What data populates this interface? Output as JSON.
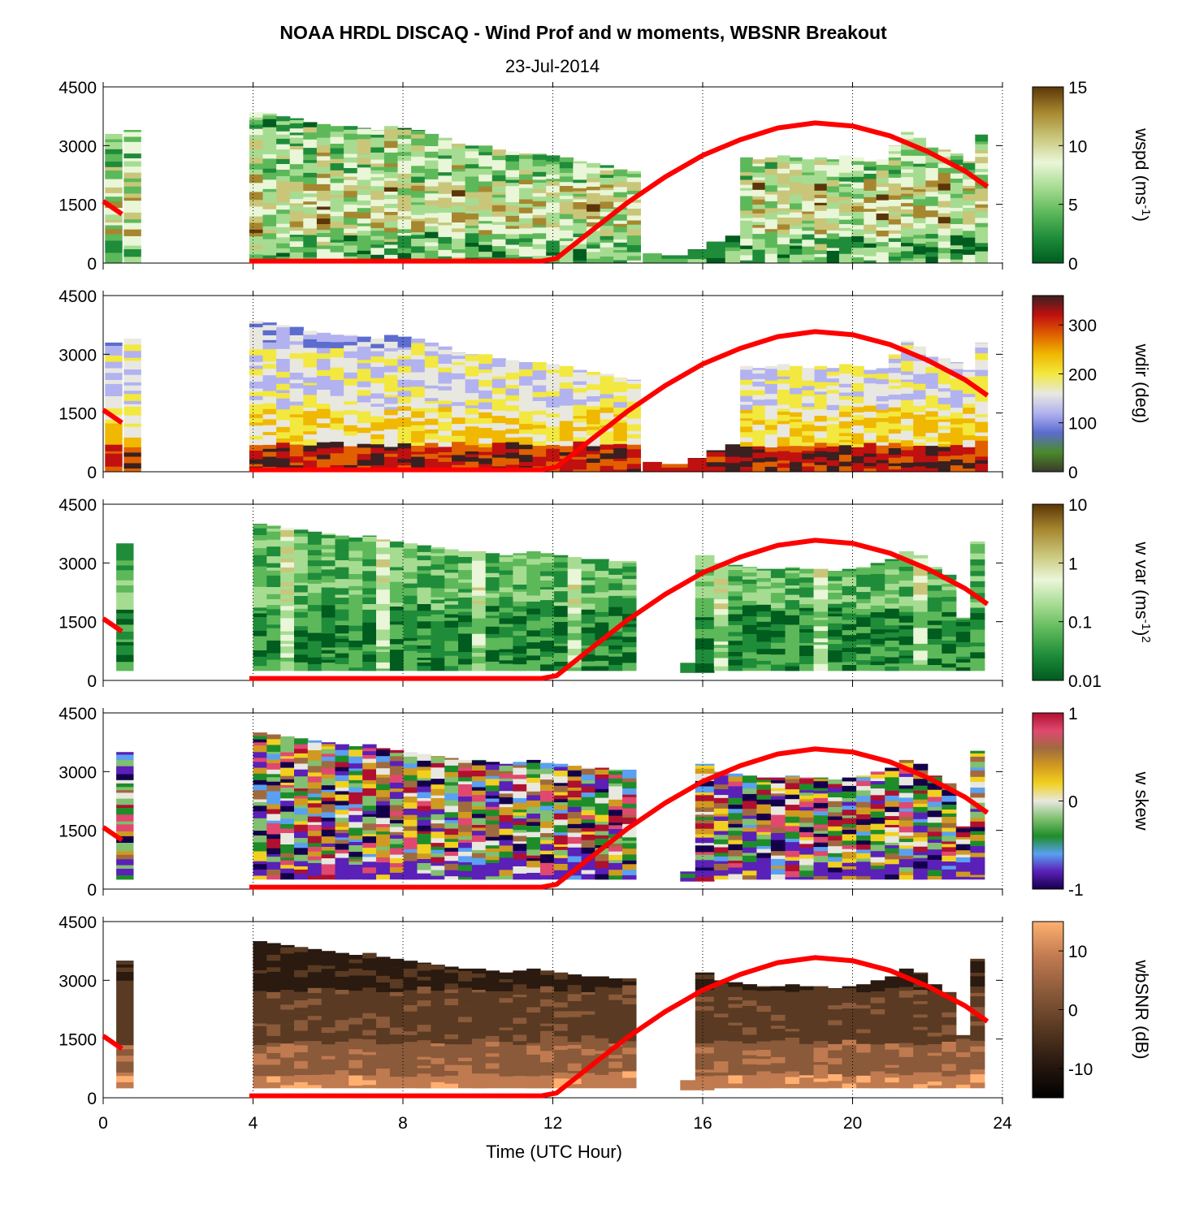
{
  "chart_data": {
    "type": "heatmap",
    "title": "NOAA HRDL DISCAQ - Wind Prof and w moments, WBSNR Breakout",
    "subtitle": "23-Jul-2014",
    "xlabel": "Time (UTC Hour)",
    "xlim": [
      0,
      24
    ],
    "xticks": [
      "0",
      "4",
      "8",
      "12",
      "16",
      "20",
      "24"
    ],
    "ylim": [
      0,
      4500
    ],
    "yticks": [
      "0",
      "1500",
      "3000",
      "4500"
    ],
    "grid": "dotted vertical lines at 4, 8, 12, 16, 20, 24",
    "overlay_line": {
      "color": "#ff0000",
      "description": "boundary layer height",
      "segments": [
        [
          [
            0.0,
            1580
          ],
          [
            0.5,
            1250
          ]
        ],
        [
          [
            3.9,
            50
          ],
          [
            11.7,
            50
          ],
          [
            12.1,
            120
          ],
          [
            13.0,
            800
          ],
          [
            14.0,
            1550
          ],
          [
            15.0,
            2200
          ],
          [
            16.0,
            2750
          ],
          [
            17.0,
            3150
          ],
          [
            18.0,
            3450
          ],
          [
            19.0,
            3580
          ],
          [
            20.0,
            3500
          ],
          [
            21.0,
            3250
          ],
          [
            22.0,
            2850
          ],
          [
            23.0,
            2350
          ],
          [
            23.6,
            1950
          ]
        ]
      ]
    },
    "panels": [
      {
        "id": "wspd",
        "colorbar_label": "wspd (ms",
        "colorbar_label_sup": "-1",
        "colorbar_label_tail": ")",
        "colorbar_ticks": [
          "0",
          "5",
          "10",
          "15"
        ],
        "colorbar_range": [
          0,
          15
        ],
        "colors": [
          "#005c1f",
          "#1f8c3a",
          "#5db85a",
          "#a6dc92",
          "#eaf6d8",
          "#c9c67a",
          "#a6872f",
          "#5c3608"
        ]
      },
      {
        "id": "wdir",
        "colorbar_label": "wdir (deg)",
        "colorbar_ticks": [
          "0",
          "100",
          "200",
          "300"
        ],
        "colorbar_range": [
          0,
          360
        ],
        "colors": [
          "#3a3a2a",
          "#4b8a2a",
          "#5c6ccf",
          "#b2b2f0",
          "#e8e8e0",
          "#f2e840",
          "#f0b800",
          "#e06000",
          "#c01010",
          "#3a2020"
        ]
      },
      {
        "id": "wvar",
        "colorbar_label": "w var (ms",
        "colorbar_label_sup": "-1",
        "colorbar_label_tail": ")",
        "colorbar_label_sup2": "2",
        "colorbar_ticks": [
          "0.01",
          "0.1",
          "1",
          "10"
        ],
        "colorbar_scale": "log",
        "colorbar_range": [
          0.01,
          10
        ],
        "colors": [
          "#005c1f",
          "#1f8c3a",
          "#5db85a",
          "#a6dc92",
          "#eaf6d8",
          "#c9c67a",
          "#a6872f",
          "#5c3608"
        ]
      },
      {
        "id": "wskew",
        "colorbar_label": "w skew",
        "colorbar_ticks": [
          "-1",
          "0",
          "1"
        ],
        "colorbar_range": [
          -1,
          1
        ],
        "colors": [
          "#14004a",
          "#5a20b8",
          "#5aa0f0",
          "#1f8c2a",
          "#80c070",
          "#e8e8e0",
          "#f2d020",
          "#d09a20",
          "#a06a40",
          "#e04870",
          "#b01030"
        ]
      },
      {
        "id": "wbsnr",
        "colorbar_label": "wbSNR (dB)",
        "colorbar_ticks": [
          "-10",
          "0",
          "10"
        ],
        "colorbar_range": [
          -15,
          15
        ],
        "colors": [
          "#000000",
          "#2a1a10",
          "#5a3a22",
          "#8a5a3a",
          "#c07a50",
          "#ffb070"
        ]
      }
    ]
  }
}
